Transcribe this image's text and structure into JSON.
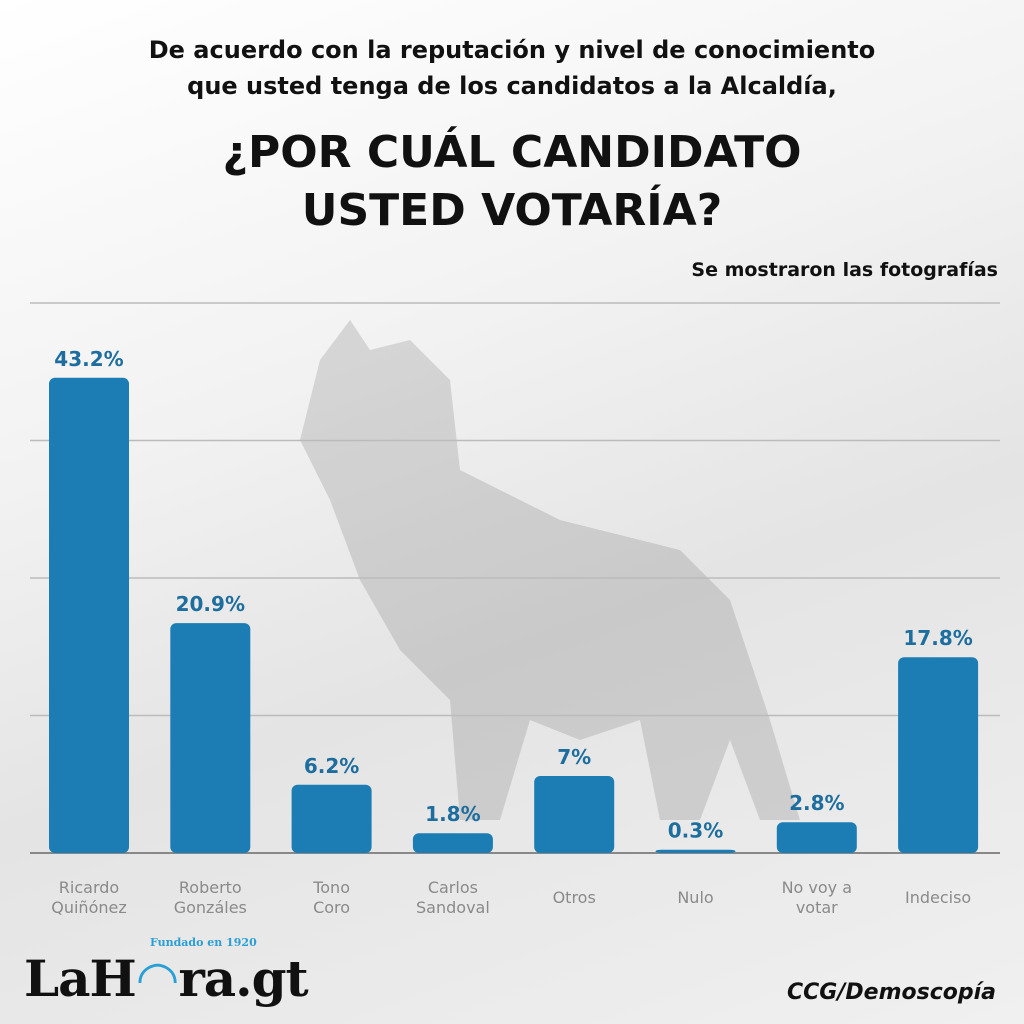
{
  "header": {
    "question_line1": "De acuerdo con la reputación y nivel de conocimiento",
    "question_line2": "que usted tenga de los candidatos a la Alcaldía,",
    "headline_line1": "¿POR CUÁL CANDIDATO",
    "headline_line2": "USTED VOTARÍA?",
    "note": "Se mostraron las fotografías"
  },
  "footer": {
    "logo": "LaHora.gt",
    "logo_tagline": "Fundado en 1920",
    "source": "CCG/Demoscopía"
  },
  "chart_data": {
    "type": "bar",
    "title": "¿POR CUÁL CANDIDATO USTED VOTARÍA?",
    "categories": [
      [
        "Ricardo",
        "Quiñónez"
      ],
      [
        "Roberto",
        "Gonzáles"
      ],
      [
        "Tono",
        "Coro"
      ],
      [
        "Carlos",
        "Sandoval"
      ],
      [
        "Otros"
      ],
      [
        "Nulo"
      ],
      [
        "No voy a",
        "votar"
      ],
      [
        "Indeciso"
      ]
    ],
    "values": [
      43.2,
      20.9,
      6.2,
      1.8,
      7,
      0.3,
      2.8,
      17.8
    ],
    "labels": [
      "43.2%",
      "20.9%",
      "6.2%",
      "1.8%",
      "7%",
      "0.3%",
      "2.8%",
      "17.8%"
    ],
    "ylim": [
      0,
      50
    ],
    "gridlines": [
      0,
      12.5,
      25,
      37.5,
      50
    ],
    "grid": true,
    "xlabel": "",
    "ylabel": "",
    "bar_color": "#1b7db3",
    "label_color": "#1d6e9e"
  }
}
